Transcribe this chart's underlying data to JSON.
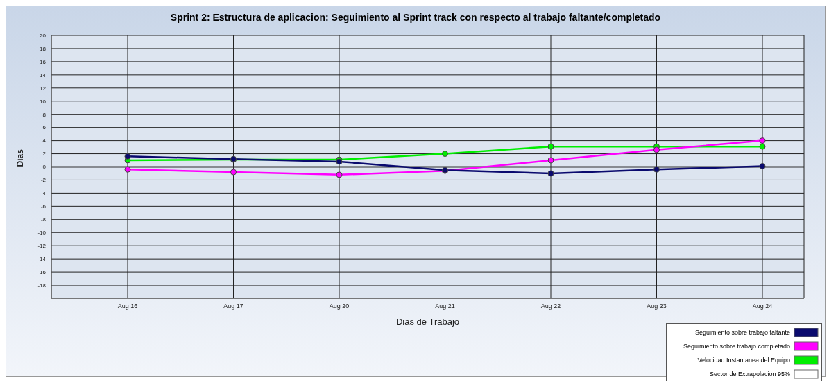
{
  "chart_data": {
    "type": "line",
    "title": "Sprint 2: Estructura de aplicacion: Seguimiento al Sprint track con respecto al trabajo faltante/completado",
    "xlabel": "Dias de Trabajo",
    "ylabel": "Dias",
    "categories": [
      "Aug 16",
      "Aug 17",
      "Aug 20",
      "Aug 21",
      "Aug 22",
      "Aug 23",
      "Aug 24"
    ],
    "series": [
      {
        "name": "Seguimiento sobre trabajo faltante",
        "color": "#0a0a6e",
        "values": [
          1.6,
          1.2,
          0.8,
          -0.5,
          -1,
          -0.4,
          0.1
        ]
      },
      {
        "name": "Seguimiento sobre trabajo completado",
        "color": "#ff00ff",
        "values": [
          -0.4,
          -0.8,
          -1.2,
          -0.6,
          1,
          2.6,
          4
        ]
      },
      {
        "name": "Velocidad Instantanea del Equipo",
        "color": "#00ee00",
        "values": [
          1,
          1.1,
          1.1,
          2,
          3.1,
          3.1,
          3.1
        ]
      },
      {
        "name": "Sector de Extrapolacion 95%",
        "color": "#ffffff",
        "values": [
          null,
          null,
          null,
          null,
          null,
          null,
          null
        ]
      }
    ],
    "ylim": [
      -20,
      20
    ],
    "yticks": [
      {
        "value": -20,
        "label": null
      },
      -18,
      -16,
      -14,
      -12,
      -10,
      -8,
      -6,
      -4,
      -2,
      0,
      2,
      4,
      6,
      8,
      10,
      12,
      14,
      16,
      18,
      20
    ],
    "ref_lines": [
      {
        "axis": "y",
        "value": 0,
        "color": "#333333"
      }
    ],
    "grid": true,
    "legend": "bottom right",
    "marker": "circle",
    "line_style": "solid"
  }
}
